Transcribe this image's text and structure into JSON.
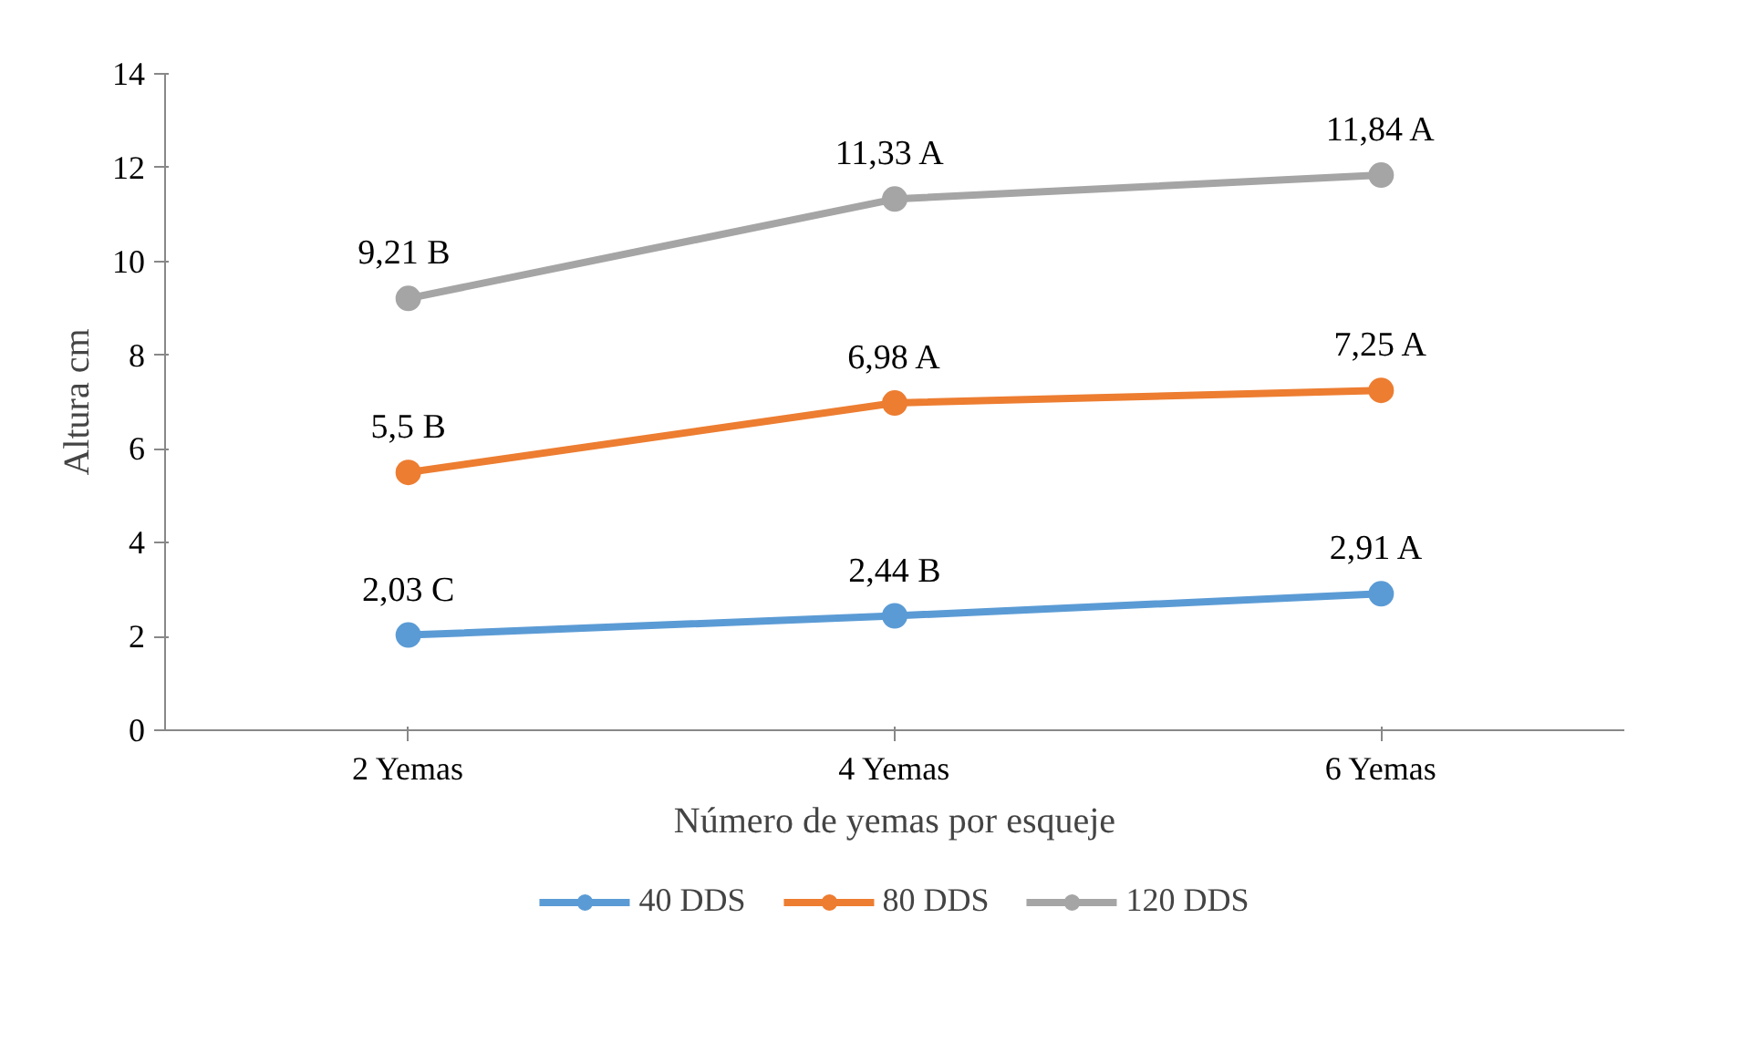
{
  "chart_data": {
    "type": "line",
    "xlabel": "Número de yemas por esqueje",
    "ylabel": "Altura cm",
    "categories": [
      "2 Yemas",
      "4 Yemas",
      "6 Yemas"
    ],
    "series": [
      {
        "name": "40 DDS",
        "color": "#5b9bd5",
        "values": [
          2.03,
          2.44,
          2.91
        ],
        "value_labels": [
          "2,03 C",
          "2,44 B",
          "2,91  A"
        ]
      },
      {
        "name": "80 DDS",
        "color": "#ed7d31",
        "values": [
          5.5,
          6.98,
          7.25
        ],
        "value_labels": [
          "5,5 B",
          "6,98 A",
          "7,25 A"
        ]
      },
      {
        "name": "120 DDS",
        "color": "#a5a5a5",
        "values": [
          9.21,
          11.33,
          11.84
        ],
        "value_labels": [
          "9,21  B",
          "11,33  A",
          "11,84 A"
        ]
      }
    ],
    "ylim": [
      0,
      14
    ],
    "yticks": [
      0,
      2,
      4,
      6,
      8,
      10,
      12,
      14
    ],
    "grid": false,
    "legend": "bottom",
    "marker": "circle",
    "line_style": "solid"
  }
}
